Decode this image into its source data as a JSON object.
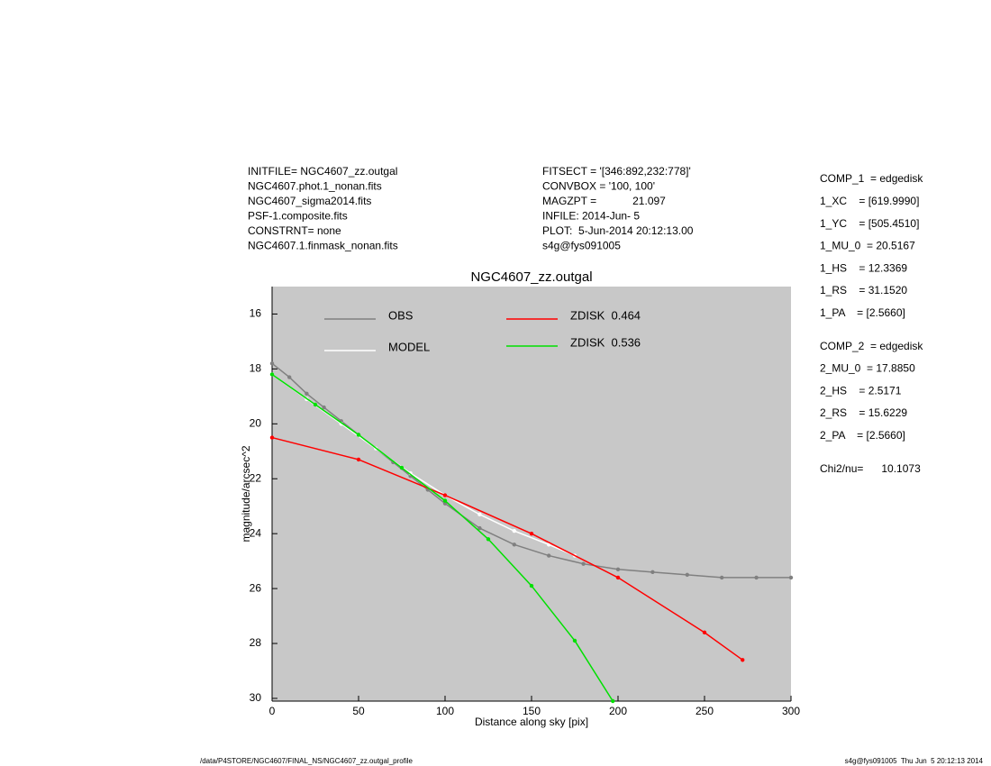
{
  "header": {
    "left": [
      "INITFILE= NGC4607_zz.outgal",
      "NGC4607.phot.1_nonan.fits",
      "NGC4607_sigma2014.fits",
      "PSF-1.composite.fits",
      "CONSTRNT= none",
      "NGC4607.1.finmask_nonan.fits"
    ],
    "middle": [
      "FITSECT = '[346:892,232:778]'",
      "CONVBOX = '100, 100'",
      "MAGZPT =            21.097",
      "INFILE: 2014-Jun- 5",
      "PLOT:  5-Jun-2014 20:12:13.00",
      "s4g@fys091005"
    ]
  },
  "side_panel": [
    [
      "COMP_1  = edgedisk",
      "1_XC    = [619.9990]",
      "1_YC    = [505.4510]",
      "1_MU_0  = 20.5167",
      "1_HS    = 12.3369",
      "1_RS    = 31.1520",
      "1_PA    = [2.5660]"
    ],
    [
      "COMP_2  = edgedisk",
      "2_MU_0  = 17.8850",
      "2_HS    = 2.5171",
      "2_RS    = 15.6229",
      "2_PA    = [2.5660]"
    ],
    [
      "Chi2/nu=      10.1073"
    ]
  ],
  "footer": {
    "left": "/data/P4STORE/NGC4607/FINAL_NS/NGC4607_zz.outgal_profile",
    "right": "s4g@fys091005  Thu Jun  5 20:12:13 2014"
  },
  "chart_data": {
    "type": "scatter",
    "title": "NGC4607_zz.outgal",
    "x_label": "Distance along sky [pix]",
    "y_label": "magnitude/arcsec^2",
    "background": "#c8c8c8",
    "xlim": [
      0,
      300
    ],
    "xticks": [
      0,
      50,
      100,
      150,
      200,
      250,
      300
    ],
    "ylim": [
      30.1,
      15.0
    ],
    "yticks": [
      16,
      18,
      20,
      22,
      24,
      26,
      28,
      30
    ],
    "series": [
      {
        "name": "OBS",
        "color": "#808080",
        "x": [
          0,
          10,
          20,
          30,
          40,
          50,
          60,
          70,
          80,
          90,
          100,
          120,
          140,
          160,
          180,
          200,
          220,
          240,
          260,
          280,
          300
        ],
        "values": [
          17.8,
          18.3,
          18.9,
          19.4,
          19.9,
          20.4,
          20.9,
          21.4,
          21.9,
          22.4,
          22.9,
          23.8,
          24.4,
          24.8,
          25.1,
          25.3,
          25.4,
          25.5,
          25.6,
          25.6,
          25.6
        ]
      },
      {
        "name": "MODEL",
        "color": "#ffffff",
        "x": [
          0,
          20,
          40,
          60,
          80,
          100,
          120,
          140,
          160,
          175
        ],
        "values": [
          18.2,
          19.1,
          20.0,
          20.9,
          21.8,
          22.6,
          23.3,
          23.9,
          24.4,
          24.8
        ]
      },
      {
        "name": "ZDISK  0.464",
        "color": "#ff0000",
        "x": [
          0,
          50,
          100,
          150,
          200,
          250,
          272
        ],
        "values": [
          20.5,
          21.3,
          22.6,
          24.0,
          25.6,
          27.6,
          28.6
        ]
      },
      {
        "name": "ZDISK  0.536",
        "color": "#00e000",
        "x": [
          0,
          25,
          50,
          75,
          100,
          125,
          150,
          175,
          197
        ],
        "values": [
          18.2,
          19.3,
          20.4,
          21.6,
          22.8,
          24.2,
          25.9,
          27.9,
          30.1
        ]
      }
    ]
  }
}
